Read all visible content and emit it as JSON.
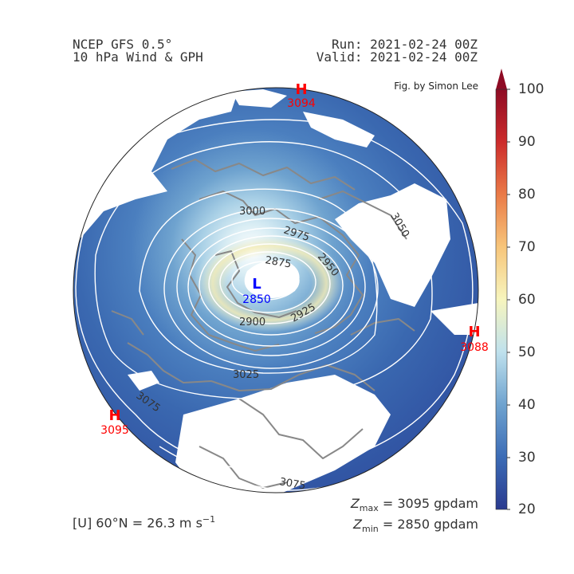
{
  "header": {
    "title_line1": "NCEP GFS 0.5°",
    "title_line2": "10 hPa Wind & GPH",
    "run": "Run: 2021-02-24 00Z",
    "valid": "Valid: 2021-02-24 00Z",
    "credit": "Fig. by Simon Lee"
  },
  "footer": {
    "mean_wind_label": "[U] 60°N = 26.3 m s",
    "mean_wind_exp": "−1",
    "zmax_value": "= 3095 gpdam",
    "zmin_value": "= 2850 gpdam",
    "z_symbol": "Z",
    "max_sub": "max",
    "min_sub": "min"
  },
  "colorbar": {
    "ticks": [
      "20",
      "30",
      "40",
      "50",
      "60",
      "70",
      "80",
      "90",
      "100"
    ],
    "colors": [
      "#2a3a8f",
      "#3c6cb6",
      "#6fa3cf",
      "#bfe1ed",
      "#f7f5bd",
      "#f7c57a",
      "#ea7a47",
      "#cc2b2b",
      "#8e0b24"
    ]
  },
  "highs_lows": [
    {
      "letter": "H",
      "value": "3094",
      "color": "#ff0000"
    },
    {
      "letter": "H",
      "value": "3088",
      "color": "#ff0000"
    },
    {
      "letter": "H",
      "value": "3095",
      "color": "#ff0000"
    },
    {
      "letter": "L",
      "value": "2850",
      "color": "#0000ff"
    }
  ],
  "contours": [
    "2850",
    "2875",
    "2900",
    "2925",
    "2950",
    "2975",
    "3000",
    "3025",
    "3050",
    "3075"
  ],
  "contour_labels": [
    "3000",
    "2975",
    "2875",
    "2950",
    "2900",
    "2925",
    "3025",
    "3050",
    "3075",
    "3075"
  ]
}
